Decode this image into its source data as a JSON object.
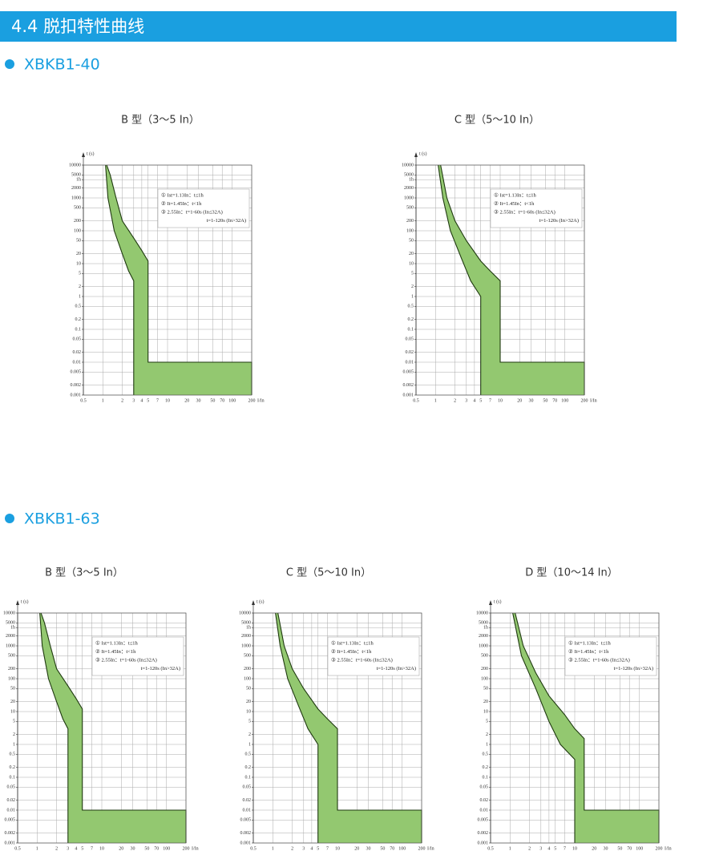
{
  "header": {
    "title": "4.4  脱扣特性曲线"
  },
  "sections": [
    {
      "title": "XBKB1-40"
    },
    {
      "title": "XBKB1-63"
    }
  ],
  "chart_data": [
    {
      "type": "band",
      "title": "B 型（3～5 In）",
      "xlabel": "I/In",
      "ylabel": "t (s)",
      "log_x": true,
      "log_y": true,
      "grid": true,
      "color": "#93c870",
      "annotations": [
        "① Ist=1.13In：t≤1h",
        "② It=1.45In：t<1h",
        "③ 2.55In：t=1-60s (In≤32A)",
        "t=1-120s (In>32A)"
      ],
      "xlim": [
        0.5,
        200
      ],
      "ylim": [
        0.001,
        10000
      ],
      "xticks": [
        0.5,
        1,
        2,
        3,
        4,
        5,
        7,
        10,
        20,
        30,
        50,
        70,
        100,
        200
      ],
      "yticks": [
        10000,
        5000,
        {
          "value": 3600,
          "label": "1h"
        },
        2000,
        1000,
        500,
        200,
        100,
        50,
        20,
        10,
        5,
        2,
        1,
        0.5,
        0.2,
        0.1,
        0.05,
        0.02,
        0.01,
        0.005,
        0.002,
        0.001
      ],
      "series": [
        {
          "x": [
            1.1,
            1.2,
            1.5,
            2,
            2.5,
            3,
            3
          ],
          "values": [
            10000,
            1000,
            100,
            20,
            6,
            3,
            0.001
          ]
        },
        {
          "x": [
            200,
            200,
            5,
            5,
            4,
            3,
            2,
            1.6,
            1.3,
            1.15
          ],
          "values": [
            0.001,
            0.01,
            0.01,
            12,
            25,
            60,
            200,
            1000,
            5000,
            10000
          ]
        }
      ]
    },
    {
      "type": "band",
      "title": "C 型（5～10 In）",
      "xlabel": "I/In",
      "ylabel": "t (s)",
      "log_x": true,
      "log_y": true,
      "grid": true,
      "color": "#93c870",
      "annotations": [
        "① Ist=1.13In：t≤1h",
        "② It=1.45In：t<1h",
        "③ 2.55In：t=1-60s (In≤32A)",
        "t=1-120s (In>32A)"
      ],
      "xlim": [
        0.5,
        200
      ],
      "ylim": [
        0.001,
        10000
      ],
      "xticks": [
        0.5,
        1,
        2,
        3,
        4,
        5,
        7,
        10,
        20,
        30,
        50,
        70,
        100,
        200
      ],
      "yticks": [
        10000,
        5000,
        {
          "value": 3600,
          "label": "1h"
        },
        2000,
        1000,
        500,
        200,
        100,
        50,
        20,
        10,
        5,
        2,
        1,
        0.5,
        0.2,
        0.1,
        0.05,
        0.02,
        0.01,
        0.005,
        0.002,
        0.001
      ],
      "series": [
        {
          "x": [
            1.1,
            1.3,
            1.7,
            2.5,
            3.5,
            5,
            5
          ],
          "values": [
            10000,
            1000,
            100,
            15,
            3,
            1,
            0.001
          ]
        },
        {
          "x": [
            200,
            200,
            10,
            10,
            7,
            5,
            3,
            2,
            1.5,
            1.2
          ],
          "values": [
            0.001,
            0.01,
            0.01,
            3,
            6,
            12,
            50,
            200,
            1000,
            10000
          ]
        }
      ]
    },
    {
      "type": "band",
      "title": "B 型（3～5 In）",
      "xlabel": "I/In",
      "ylabel": "t (s)",
      "log_x": true,
      "log_y": true,
      "grid": true,
      "color": "#93c870",
      "annotations": [
        "① Ist=1.13In：t≤1h",
        "② It=1.45In：t<1h",
        "③ 2.55In：t=1-60s (In≤32A)",
        "t=1-120s (In>32A)"
      ],
      "xlim": [
        0.5,
        200
      ],
      "ylim": [
        0.001,
        10000
      ],
      "xticks": [
        0.5,
        1,
        2,
        3,
        4,
        5,
        7,
        10,
        20,
        30,
        50,
        70,
        100,
        200
      ],
      "yticks": [
        10000,
        5000,
        {
          "value": 3600,
          "label": "1h"
        },
        2000,
        1000,
        500,
        200,
        100,
        50,
        20,
        10,
        5,
        2,
        1,
        0.5,
        0.2,
        0.1,
        0.05,
        0.02,
        0.01,
        0.005,
        0.002,
        0.001
      ],
      "series": [
        {
          "x": [
            1.1,
            1.2,
            1.5,
            2,
            2.5,
            3,
            3
          ],
          "values": [
            10000,
            1000,
            100,
            20,
            6,
            3,
            0.001
          ]
        },
        {
          "x": [
            200,
            200,
            5,
            5,
            4,
            3,
            2,
            1.6,
            1.3,
            1.15
          ],
          "values": [
            0.001,
            0.01,
            0.01,
            12,
            25,
            60,
            200,
            1000,
            5000,
            10000
          ]
        }
      ]
    },
    {
      "type": "band",
      "title": "C 型（5～10 In）",
      "xlabel": "I/In",
      "ylabel": "t (s)",
      "log_x": true,
      "log_y": true,
      "grid": true,
      "color": "#93c870",
      "annotations": [
        "① Ist=1.13In：t≤1h",
        "② It=1.45In：t<1h",
        "③ 2.55In：t=1-60s (In≤32A)",
        "t=1-120s (In>32A)"
      ],
      "xlim": [
        0.5,
        200
      ],
      "ylim": [
        0.001,
        10000
      ],
      "xticks": [
        0.5,
        1,
        2,
        3,
        4,
        5,
        7,
        10,
        20,
        30,
        50,
        70,
        100,
        200
      ],
      "yticks": [
        10000,
        5000,
        {
          "value": 3600,
          "label": "1h"
        },
        2000,
        1000,
        500,
        200,
        100,
        50,
        20,
        10,
        5,
        2,
        1,
        0.5,
        0.2,
        0.1,
        0.05,
        0.02,
        0.01,
        0.005,
        0.002,
        0.001
      ],
      "series": [
        {
          "x": [
            1.1,
            1.3,
            1.7,
            2.5,
            3.5,
            5,
            5
          ],
          "values": [
            10000,
            1000,
            100,
            15,
            3,
            1,
            0.001
          ]
        },
        {
          "x": [
            200,
            200,
            10,
            10,
            7,
            5,
            3,
            2,
            1.5,
            1.2
          ],
          "values": [
            0.001,
            0.01,
            0.01,
            3,
            6,
            12,
            50,
            200,
            1000,
            10000
          ]
        }
      ]
    },
    {
      "type": "band",
      "title": "D 型（10～14 In）",
      "xlabel": "I/In",
      "ylabel": "t (s)",
      "log_x": true,
      "log_y": true,
      "grid": true,
      "color": "#93c870",
      "annotations": [
        "① Ist=1.13In：t≤1h",
        "② It=1.45In：t<1h",
        "③ 2.55In：t=1-60s (In≤32A)",
        "t=1-120s (In>32A)"
      ],
      "xlim": [
        0.5,
        200
      ],
      "ylim": [
        0.001,
        10000
      ],
      "xticks": [
        0.5,
        1,
        2,
        3,
        4,
        5,
        7,
        10,
        20,
        30,
        50,
        70,
        100,
        200
      ],
      "yticks": [
        10000,
        5000,
        {
          "value": 3600,
          "label": "1h"
        },
        2000,
        1000,
        500,
        200,
        100,
        50,
        20,
        10,
        5,
        2,
        1,
        0.5,
        0.2,
        0.1,
        0.05,
        0.02,
        0.01,
        0.005,
        0.002,
        0.001
      ],
      "series": [
        {
          "x": [
            1.1,
            1.5,
            2.5,
            4,
            6,
            10,
            10
          ],
          "values": [
            10000,
            500,
            50,
            5,
            1,
            0.35,
            0.001
          ]
        },
        {
          "x": [
            200,
            200,
            14,
            14,
            10,
            7,
            4,
            2.5,
            1.6,
            1.2
          ],
          "values": [
            0.001,
            0.01,
            0.01,
            1.5,
            3,
            8,
            30,
            150,
            1000,
            10000
          ]
        }
      ]
    }
  ]
}
